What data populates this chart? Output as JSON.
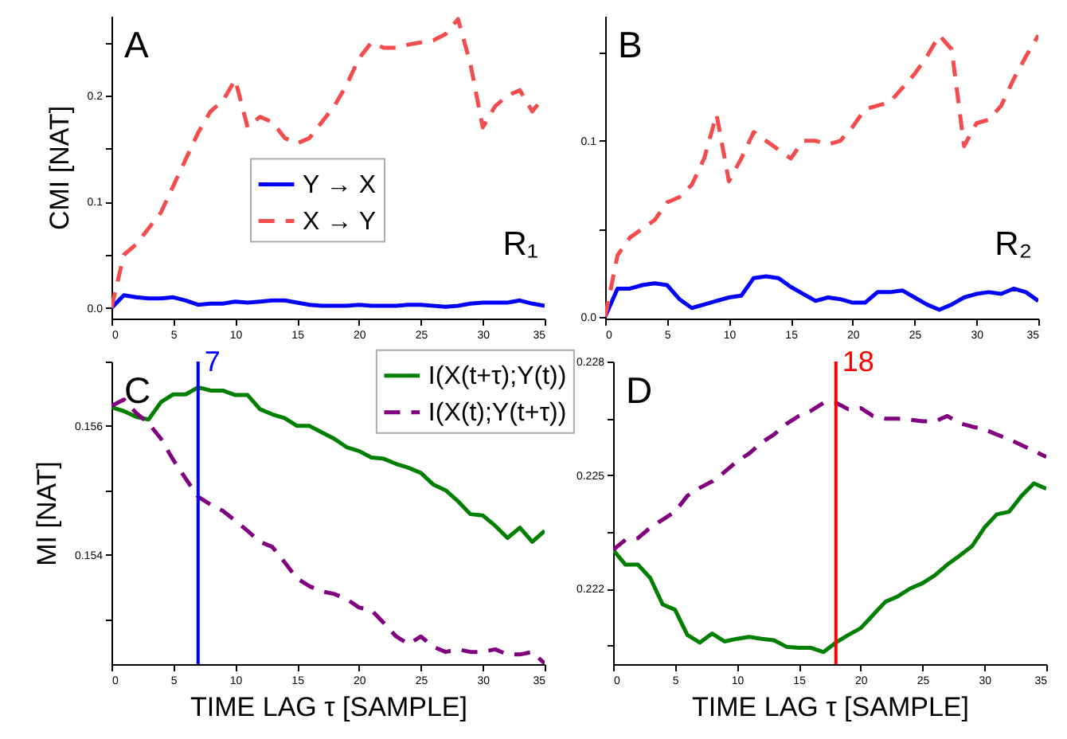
{
  "chart_data": [
    {
      "type": "line",
      "ylabel": "CMI [NAT]",
      "annotations": [
        "A",
        "R₁"
      ],
      "x": [
        0,
        1,
        2,
        3,
        4,
        5,
        6,
        7,
        8,
        9,
        10,
        11,
        12,
        13,
        14,
        15,
        16,
        17,
        18,
        19,
        20,
        21,
        22,
        23,
        24,
        25,
        26,
        27,
        28,
        29,
        30,
        31,
        32,
        33,
        34,
        35
      ],
      "xlim": [
        0,
        35
      ],
      "xticks": [
        0,
        5,
        10,
        15,
        20,
        25,
        30,
        35
      ],
      "ylim": [
        -0.01,
        0.275
      ],
      "yticks": [
        {
          "value": 0,
          "label": "0.0"
        },
        {
          "value": 0.05,
          "label": null
        },
        {
          "value": 0.1,
          "label": "0.1"
        },
        {
          "value": 0.15,
          "label": null
        },
        {
          "value": 0.2,
          "label": "0.2"
        },
        {
          "value": 0.25,
          "label": null
        }
      ],
      "legend": "left",
      "grid": false,
      "series": [
        {
          "name": "Y → X",
          "color": "#0000ff",
          "line_style": "solid",
          "values": [
            0,
            0.012,
            0.01,
            0.009,
            0.009,
            0.01,
            0.007,
            0.003,
            0.004,
            0.004,
            0.006,
            0.005,
            0.006,
            0.007,
            0.007,
            0.005,
            0.003,
            0.002,
            0.002,
            0.002,
            0.003,
            0.002,
            0.002,
            0.002,
            0.003,
            0.003,
            0.002,
            0.001,
            0.002,
            0.004,
            0.005,
            0.005,
            0.005,
            0.007,
            0.004,
            0.002
          ]
        },
        {
          "name": " X → Y",
          "color": "#f44c4c",
          "line_style": "dashed",
          "values": [
            0,
            0.05,
            0.06,
            0.075,
            0.09,
            0.115,
            0.14,
            0.165,
            0.185,
            0.195,
            0.215,
            0.17,
            0.18,
            0.175,
            0.16,
            0.155,
            0.16,
            0.175,
            0.19,
            0.21,
            0.235,
            0.25,
            0.245,
            0.245,
            0.248,
            0.25,
            0.252,
            0.258,
            0.272,
            0.23,
            0.17,
            0.19,
            0.2,
            0.205,
            0.185,
            0.2
          ]
        }
      ]
    },
    {
      "type": "line",
      "annotations": [
        "B",
        "R₂"
      ],
      "x": [
        0,
        1,
        2,
        3,
        4,
        5,
        6,
        7,
        8,
        9,
        10,
        11,
        12,
        13,
        14,
        15,
        16,
        17,
        18,
        19,
        20,
        21,
        22,
        23,
        24,
        25,
        26,
        27,
        28,
        29,
        30,
        31,
        32,
        33,
        34,
        35
      ],
      "xlim": [
        0,
        35
      ],
      "xticks": [
        0,
        5,
        10,
        15,
        20,
        25,
        30,
        35
      ],
      "ylim": [
        -0.001,
        0.171
      ],
      "yticks": [
        {
          "value": 0,
          "label": "0.0"
        },
        {
          "value": 0.05,
          "label": null
        },
        {
          "value": 0.1,
          "label": "0.1"
        },
        {
          "value": 0.15,
          "label": null
        }
      ],
      "grid": false,
      "series": [
        {
          "color": "#0000ff",
          "line_style": "solid",
          "values": [
            0,
            0.016,
            0.016,
            0.018,
            0.019,
            0.018,
            0.01,
            0.005,
            0.007,
            0.009,
            0.011,
            0.012,
            0.022,
            0.023,
            0.022,
            0.017,
            0.013,
            0.009,
            0.011,
            0.01,
            0.008,
            0.008,
            0.014,
            0.014,
            0.015,
            0.011,
            0.007,
            0.004,
            0.007,
            0.011,
            0.013,
            0.014,
            0.013,
            0.016,
            0.014,
            0.009
          ]
        },
        {
          "color": "#f44c4c",
          "line_style": "dashed",
          "values": [
            0,
            0.035,
            0.045,
            0.05,
            0.055,
            0.065,
            0.068,
            0.075,
            0.09,
            0.115,
            0.077,
            0.09,
            0.105,
            0.1,
            0.095,
            0.09,
            0.1,
            0.1,
            0.098,
            0.1,
            0.108,
            0.118,
            0.12,
            0.122,
            0.13,
            0.138,
            0.148,
            0.16,
            0.152,
            0.097,
            0.11,
            0.112,
            0.12,
            0.135,
            0.148,
            0.16
          ]
        }
      ]
    },
    {
      "type": "line",
      "xlabel": "TIME LAG τ [SAMPLE]",
      "ylabel": "MI [NAT]",
      "annotations": [
        "C"
      ],
      "x": [
        0,
        1,
        2,
        3,
        4,
        5,
        6,
        7,
        8,
        9,
        10,
        11,
        12,
        13,
        14,
        15,
        16,
        17,
        18,
        19,
        20,
        21,
        22,
        23,
        24,
        25,
        26,
        27,
        28,
        29,
        30,
        31,
        32,
        33,
        34,
        35
      ],
      "xlim": [
        0,
        35
      ],
      "xticks": [
        0,
        5,
        10,
        15,
        20,
        25,
        30,
        35
      ],
      "ylim": [
        0.1523,
        0.157
      ],
      "yticks": [
        {
          "value": 0.153,
          "label": null
        },
        {
          "value": 0.154,
          "label": "0.154"
        },
        {
          "value": 0.155,
          "label": null
        },
        {
          "value": 0.156,
          "label": "0.156"
        },
        {
          "value": 0.157,
          "label": null
        }
      ],
      "legend": "top right",
      "grid": false,
      "ref_lines": [
        {
          "axis": "x",
          "value": 7,
          "label": "7",
          "color": "#0000ff"
        }
      ],
      "series": [
        {
          "name": "I(X(t+τ);Y(t))",
          "color": "#007f00",
          "line_style": "solid",
          "values": [
            0.15629,
            0.15623,
            0.15614,
            0.1561,
            0.15637,
            0.15649,
            0.15649,
            0.1566,
            0.15655,
            0.15655,
            0.15648,
            0.15648,
            0.15626,
            0.15618,
            0.15612,
            0.156,
            0.156,
            0.1559,
            0.1558,
            0.15567,
            0.15561,
            0.15551,
            0.15549,
            0.15541,
            0.15535,
            0.15527,
            0.15509,
            0.155,
            0.15483,
            0.15463,
            0.15461,
            0.15445,
            0.15426,
            0.15442,
            0.1542,
            0.15437
          ]
        },
        {
          "name": "I(X(t);Y(t+τ))",
          "color": "#800080",
          "line_style": "dashed",
          "values": [
            0.15631,
            0.15641,
            0.1562,
            0.15604,
            0.1558,
            0.15547,
            0.15518,
            0.1549,
            0.15478,
            0.15468,
            0.15453,
            0.15437,
            0.1542,
            0.15412,
            0.15388,
            0.15363,
            0.15351,
            0.15343,
            0.15339,
            0.15331,
            0.15318,
            0.15314,
            0.15294,
            0.15273,
            0.15261,
            0.15273,
            0.15257,
            0.15249,
            0.15253,
            0.15249,
            0.15249,
            0.15253,
            0.15245,
            0.15245,
            0.15249,
            0.15231
          ]
        }
      ]
    },
    {
      "type": "line",
      "xlabel": "TIME LAG τ [SAMPLE]",
      "annotations": [
        "D"
      ],
      "x": [
        0,
        1,
        2,
        3,
        4,
        5,
        6,
        7,
        8,
        9,
        10,
        11,
        12,
        13,
        14,
        15,
        16,
        17,
        18,
        19,
        20,
        21,
        22,
        23,
        24,
        25,
        26,
        27,
        28,
        29,
        30,
        31,
        32,
        33,
        34,
        35
      ],
      "xlim": [
        0,
        35
      ],
      "xticks": [
        0,
        5,
        10,
        15,
        20,
        25,
        30,
        35
      ],
      "ylim": [
        0.22,
        0.228
      ],
      "yticks": [
        {
          "value": 0.2205,
          "label": null
        },
        {
          "value": 0.222,
          "label": "0.222"
        },
        {
          "value": 0.2235,
          "label": null
        },
        {
          "value": 0.225,
          "label": "0.225"
        },
        {
          "value": 0.2265,
          "label": null
        },
        {
          "value": 0.228,
          "label": "0.228"
        }
      ],
      "grid": false,
      "ref_lines": [
        {
          "axis": "x",
          "value": 18,
          "label": "18",
          "color": "#ff0000"
        }
      ],
      "series": [
        {
          "color": "#007f00",
          "line_style": "solid",
          "values": [
            0.22302,
            0.22263,
            0.22263,
            0.22228,
            0.22158,
            0.22144,
            0.22077,
            0.22057,
            0.22081,
            0.2206,
            0.22067,
            0.22072,
            0.22067,
            0.22063,
            0.22046,
            0.22043,
            0.22043,
            0.22032,
            0.22057,
            0.22077,
            0.22095,
            0.2213,
            0.22165,
            0.22179,
            0.222,
            0.22214,
            0.22235,
            0.22263,
            0.22287,
            0.22312,
            0.22361,
            0.22396,
            0.22403,
            0.22445,
            0.22478,
            0.22464
          ]
        },
        {
          "color": "#800080",
          "line_style": "dashed",
          "values": [
            0.22302,
            0.22329,
            0.22333,
            0.22361,
            0.22382,
            0.22403,
            0.22445,
            0.22466,
            0.22483,
            0.22508,
            0.22536,
            0.22557,
            0.22586,
            0.22607,
            0.22635,
            0.22656,
            0.2267,
            0.22691,
            0.22691,
            0.22674,
            0.22677,
            0.22656,
            0.22649,
            0.22649,
            0.22646,
            0.22642,
            0.22642,
            0.22656,
            0.22637,
            0.22628,
            0.22621,
            0.22607,
            0.22595,
            0.22579,
            0.22564,
            0.22548
          ]
        }
      ]
    }
  ]
}
